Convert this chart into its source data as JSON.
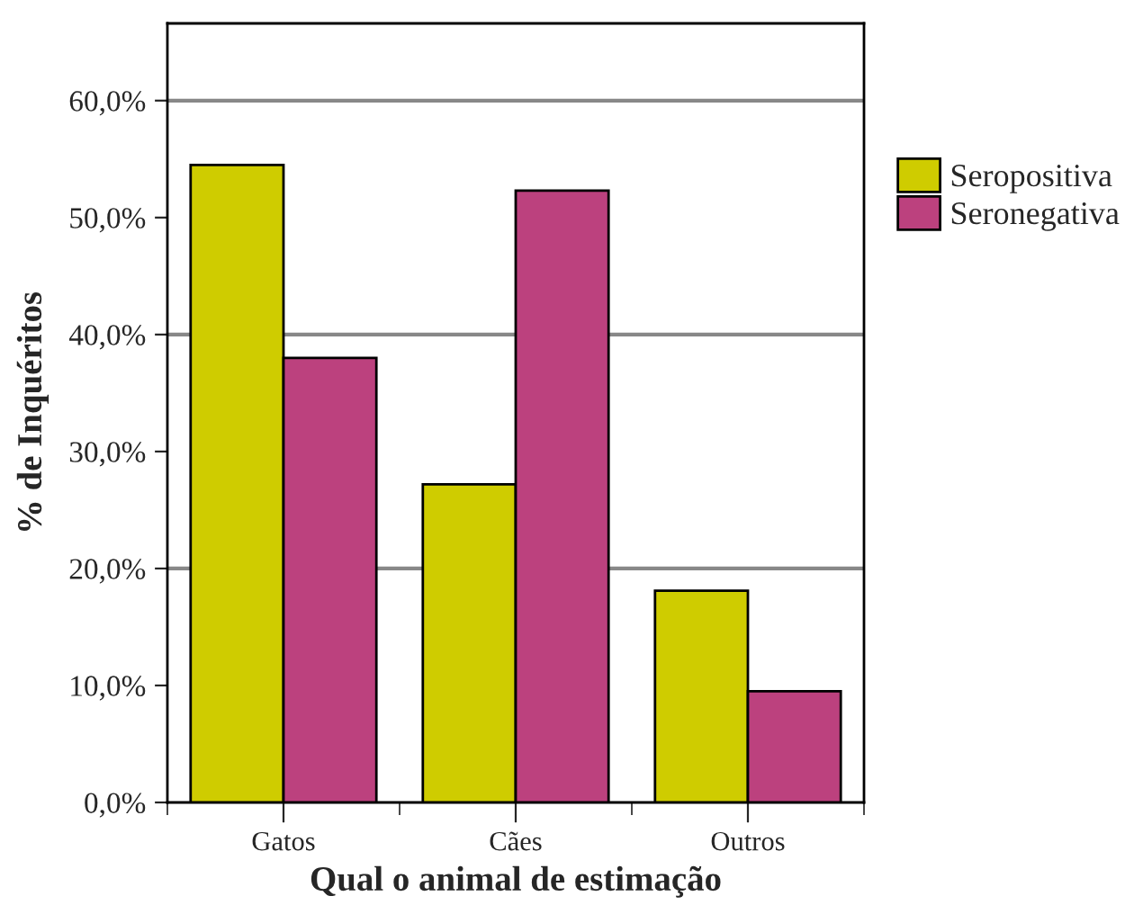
{
  "chart_data": {
    "type": "bar",
    "xlabel": "Qual o animal de estimação",
    "ylabel": "% de Inquéritos",
    "categories": [
      "Gatos",
      "Cães",
      "Outros"
    ],
    "series": [
      {
        "name": "Seropositiva",
        "color": "#cfcc00",
        "values": [
          54.5,
          27.2,
          18.1
        ]
      },
      {
        "name": "Seronegativa",
        "color": "#bc417e",
        "values": [
          38.0,
          52.3,
          9.5
        ]
      }
    ],
    "ylim": [
      0,
      66.6
    ],
    "yticks": [
      {
        "value": 0,
        "label": "0,0%"
      },
      {
        "value": 10,
        "label": "10,0%"
      },
      {
        "value": 20,
        "label": "20,0%"
      },
      {
        "value": 30,
        "label": "30,0%"
      },
      {
        "value": 40,
        "label": "40,0%"
      },
      {
        "value": 50,
        "label": "50,0%"
      },
      {
        "value": 60,
        "label": "60,0%"
      }
    ],
    "ref_lines": [
      {
        "axis": "y",
        "value": 20,
        "color": "#888888"
      },
      {
        "axis": "y",
        "value": 40,
        "color": "#888888"
      },
      {
        "axis": "y",
        "value": 60,
        "color": "#888888"
      }
    ],
    "legend": "right"
  }
}
